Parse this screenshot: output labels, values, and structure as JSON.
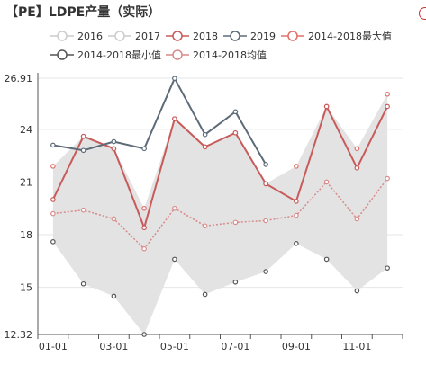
{
  "header": {
    "title": "【PE】LDPE产量（实际）"
  },
  "colors": {
    "s2018": "#c85a5a",
    "s2019": "#5d6b78",
    "smax": "#e0706a",
    "smin": "#555555",
    "savg": "#d98a8a",
    "inactive": "#cccccc",
    "band": "#e3e3e3",
    "grid": "#e6e6e6",
    "axis": "#555555"
  },
  "chart_data": {
    "type": "line",
    "title": "【PE】LDPE产量（实际）",
    "x": [
      "01-01",
      "02-01",
      "03-01",
      "04-01",
      "05-01",
      "06-01",
      "07-01",
      "08-01",
      "09-01",
      "10-01",
      "11-01",
      "12-01"
    ],
    "xticks": [
      "01-01",
      "03-01",
      "05-01",
      "07-01",
      "09-01",
      "11-01"
    ],
    "yticks": [
      "26.91",
      "24",
      "21",
      "18",
      "15",
      "12.32"
    ],
    "ylim": [
      12.32,
      26.91
    ],
    "grid": true,
    "legend": [
      {
        "name": "2016",
        "active": false
      },
      {
        "name": "2017",
        "active": false
      },
      {
        "name": "2018",
        "active": true
      },
      {
        "name": "2019",
        "active": true
      },
      {
        "name": "2014-2018最大值",
        "active": true
      },
      {
        "name": "2014-2018最小值",
        "active": true
      },
      {
        "name": "2014-2018均值",
        "active": true
      }
    ],
    "series": [
      {
        "name": "2018",
        "values": [
          20.0,
          23.6,
          22.9,
          18.4,
          24.6,
          23.0,
          23.8,
          20.9,
          19.9,
          25.3,
          21.8,
          25.3
        ]
      },
      {
        "name": "2019",
        "values": [
          23.1,
          22.8,
          23.3,
          22.9,
          26.9,
          23.7,
          25.0,
          22.0,
          null,
          null,
          null,
          null
        ]
      },
      {
        "name": "2014-2018最大值",
        "values": [
          21.9,
          23.6,
          22.9,
          19.5,
          24.6,
          23.0,
          23.8,
          20.9,
          21.9,
          25.3,
          22.9,
          26.0
        ]
      },
      {
        "name": "2014-2018最小值",
        "values": [
          17.6,
          15.2,
          14.5,
          12.32,
          16.6,
          14.6,
          15.3,
          15.9,
          17.5,
          16.6,
          14.8,
          16.1
        ]
      },
      {
        "name": "2014-2018均值",
        "values": [
          19.2,
          19.4,
          18.9,
          17.2,
          19.5,
          18.5,
          18.7,
          18.8,
          19.1,
          21.0,
          18.9,
          21.2
        ]
      }
    ]
  }
}
